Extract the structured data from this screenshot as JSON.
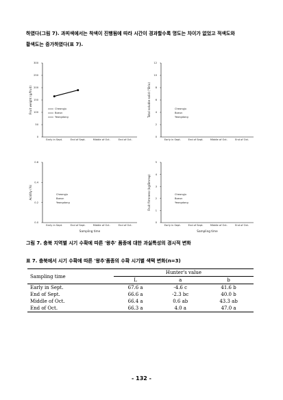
{
  "body_text": [
    "하였다(그림 7). 과피색에서는 착색이 진행됨에 따라 시간이 경과할수록 명도는 차이가 없었고 적색도와",
    "황색도는 증가하였다(표 7)."
  ],
  "figures": [
    {
      "ylabel": "Fruit weight (g/fruit)",
      "ylim": [
        0,
        300
      ],
      "yticks": [
        0,
        50,
        100,
        150,
        200,
        250,
        300
      ],
      "categories": [
        "Early in Sept.",
        "End of Sept.",
        "Middle of Oct.",
        "End of Oct."
      ],
      "legend": [
        "Cheongju",
        "Boeun",
        "Yeongdong"
      ],
      "series": [
        {
          "name": "Cheongju",
          "values": [
            165,
            190,
            null,
            null
          ]
        }
      ]
    },
    {
      "ylabel": "Total soluble solid (°Brix)",
      "ylim": [
        0,
        12
      ],
      "yticks": [
        0,
        2,
        4,
        6,
        8,
        10,
        12
      ],
      "categories": [
        "Early in Sept.",
        "End of Sept.",
        "Middle of Oct.",
        "End of Oct."
      ],
      "legend": [
        "Cheongju",
        "Boeun",
        "Yeongdong"
      ]
    },
    {
      "ylabel": "Acidity (%)",
      "xlabel": "Sampling time",
      "ylim": [
        0,
        0.6
      ],
      "yticks": [
        {
          "value": 0,
          "label": "0.0"
        },
        0.2,
        0.4,
        0.6
      ],
      "categories": [
        "Early in Sept.",
        "End of Sept.",
        "Middle of Oct.",
        "End of Oct."
      ],
      "legend": [
        "Cheongju",
        "Boeun",
        "Yeongdong"
      ]
    },
    {
      "ylabel": "Fruit firmness (kg/8mmφ)",
      "xlabel": "Sampling time",
      "ylim": [
        0,
        5
      ],
      "yticks": [
        0,
        1,
        2,
        3,
        4,
        5
      ],
      "categories": [
        "Early in Sept.",
        "End of Sept.",
        "Middle of Oct.",
        "End of Oct."
      ],
      "legend": [
        "Cheongju",
        "Boeun",
        "Yeongdong"
      ]
    }
  ],
  "figure_caption": "그림 7. 충북 지역별 시기 수확에 따른 '왕추' 품종에 대한 과실특성의 경시적 변화",
  "table_caption": "표 7. 충북에서 시기 수확에 따른 '왕추'품종의 수확 시기별 색택 변화(n=3)",
  "table": {
    "header": [
      "Sampling time",
      "Hunter's value"
    ],
    "subheader": [
      "L",
      "a",
      "b"
    ],
    "rows": [
      [
        "Early in Sept.",
        "67.6 a",
        "-4.6 c",
        "41.6 b"
      ],
      [
        "End of Sept.",
        "66.6 a",
        "-2.3 bc",
        "40.0 b"
      ],
      [
        "Middle of Oct.",
        "66.4 a",
        "0.6 ab",
        "43.3 ab"
      ],
      [
        "End of Oct.",
        "66.3 a",
        "4.0 a",
        "47.0 a"
      ]
    ]
  },
  "page_number": "- 132 -"
}
